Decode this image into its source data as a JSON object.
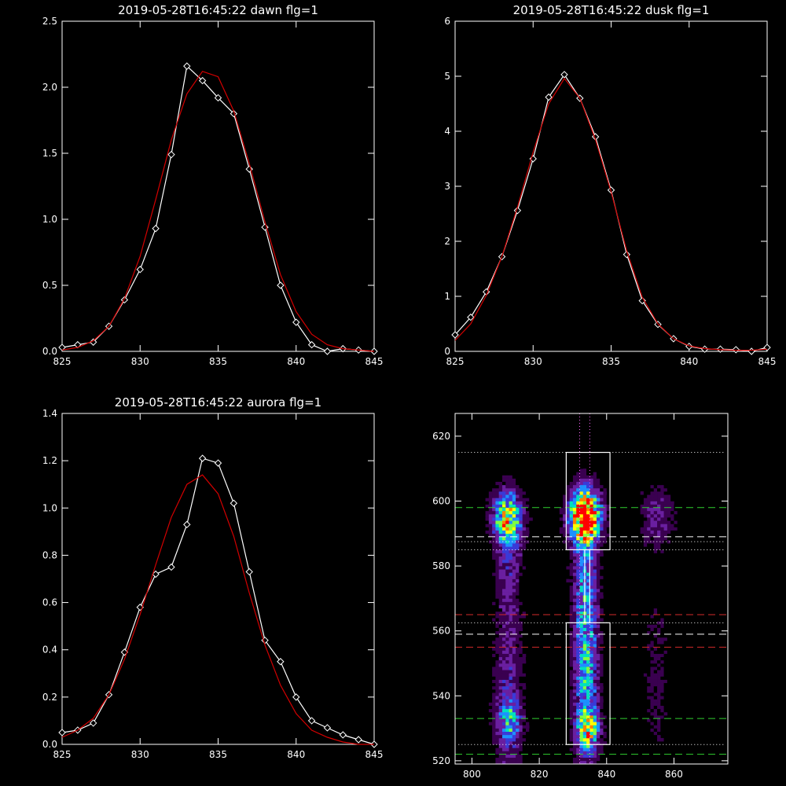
{
  "colors": {
    "background": "#000000",
    "foreground": "#ffffff",
    "fit": "#d40000",
    "marker": "#ffffff",
    "green_dash": "#2fd02f",
    "red_dash": "#d42a2a",
    "white_dash": "#ffffff",
    "magenta_dot": "#ff66ff",
    "white_dot": "#ffffff"
  },
  "chart_data": [
    {
      "type": "line",
      "title": "2019-05-28T16:45:22 dawn flg=1",
      "xlim": [
        825,
        845
      ],
      "ylim": [
        0,
        2.5
      ],
      "xticks": [
        "825",
        "830",
        "835",
        "840",
        "845"
      ],
      "yticks": [
        "0.0",
        "0.5",
        "1.0",
        "1.5",
        "2.0",
        "2.5"
      ],
      "series": [
        {
          "style": "data",
          "x": [
            825,
            826,
            827,
            828,
            829,
            830,
            831,
            832,
            833,
            834,
            835,
            836,
            837,
            838,
            839,
            840,
            841,
            842,
            843,
            844,
            845
          ],
          "y": [
            0.03,
            0.05,
            0.07,
            0.19,
            0.39,
            0.62,
            0.93,
            1.49,
            2.16,
            2.05,
            1.92,
            1.8,
            1.38,
            0.94,
            0.5,
            0.22,
            0.05,
            0.0,
            0.02,
            0.01,
            0.0
          ]
        },
        {
          "style": "fit",
          "x": [
            825,
            826,
            827,
            828,
            829,
            830,
            831,
            832,
            833,
            834,
            835,
            836,
            837,
            838,
            839,
            840,
            841,
            842,
            843,
            844,
            845
          ],
          "y": [
            0.01,
            0.03,
            0.08,
            0.19,
            0.4,
            0.72,
            1.15,
            1.6,
            1.95,
            2.12,
            2.08,
            1.82,
            1.42,
            0.98,
            0.58,
            0.3,
            0.13,
            0.05,
            0.02,
            0.01,
            0.0
          ]
        }
      ]
    },
    {
      "type": "line",
      "title": "2019-05-28T16:45:22 dusk flg=1",
      "xlim": [
        825,
        845
      ],
      "ylim": [
        0,
        6
      ],
      "xticks": [
        "825",
        "830",
        "835",
        "840",
        "845"
      ],
      "yticks": [
        "0",
        "1",
        "2",
        "3",
        "4",
        "5",
        "6"
      ],
      "series": [
        {
          "style": "data",
          "x": [
            825,
            826,
            827,
            828,
            829,
            830,
            831,
            832,
            833,
            834,
            835,
            836,
            837,
            838,
            839,
            840,
            841,
            842,
            843,
            844,
            845
          ],
          "y": [
            0.3,
            0.62,
            1.08,
            1.72,
            2.56,
            3.5,
            4.62,
            5.03,
            4.6,
            3.9,
            2.93,
            1.76,
            0.92,
            0.49,
            0.23,
            0.09,
            0.04,
            0.04,
            0.03,
            0.0,
            0.07
          ]
        },
        {
          "style": "fit",
          "x": [
            825,
            826,
            827,
            828,
            829,
            830,
            831,
            832,
            833,
            834,
            835,
            836,
            837,
            838,
            839,
            840,
            841,
            842,
            843,
            844,
            845
          ],
          "y": [
            0.2,
            0.5,
            1.02,
            1.72,
            2.62,
            3.62,
            4.5,
            4.96,
            4.6,
            3.85,
            2.9,
            1.82,
            0.98,
            0.5,
            0.23,
            0.1,
            0.05,
            0.03,
            0.02,
            0.02,
            0.04
          ]
        }
      ]
    },
    {
      "type": "line",
      "title": "2019-05-28T16:45:22 aurora flg=1",
      "xlim": [
        825,
        845
      ],
      "ylim": [
        0,
        1.4
      ],
      "xticks": [
        "825",
        "830",
        "835",
        "840",
        "845"
      ],
      "yticks": [
        "0.0",
        "0.2",
        "0.4",
        "0.6",
        "0.8",
        "1.0",
        "1.2",
        "1.4"
      ],
      "series": [
        {
          "style": "data",
          "x": [
            825,
            826,
            827,
            828,
            829,
            830,
            831,
            832,
            833,
            834,
            835,
            836,
            837,
            838,
            839,
            840,
            841,
            842,
            843,
            844,
            845
          ],
          "y": [
            0.05,
            0.06,
            0.09,
            0.21,
            0.39,
            0.58,
            0.72,
            0.75,
            0.93,
            1.21,
            1.19,
            1.02,
            0.73,
            0.44,
            0.35,
            0.2,
            0.1,
            0.07,
            0.04,
            0.02,
            0.0
          ]
        },
        {
          "style": "fit",
          "x": [
            825,
            826,
            827,
            828,
            829,
            830,
            831,
            832,
            833,
            834,
            835,
            836,
            837,
            838,
            839,
            840,
            841,
            842,
            843,
            844,
            845
          ],
          "y": [
            0.03,
            0.06,
            0.11,
            0.21,
            0.36,
            0.55,
            0.76,
            0.96,
            1.1,
            1.14,
            1.06,
            0.88,
            0.64,
            0.42,
            0.25,
            0.13,
            0.06,
            0.03,
            0.01,
            0.0,
            0.0
          ]
        }
      ]
    },
    {
      "type": "heatmap",
      "title": "",
      "xlim": [
        795,
        876
      ],
      "ylim": [
        519,
        627
      ],
      "xticks": [
        "800",
        "820",
        "840",
        "860"
      ],
      "yticks": [
        "520",
        "540",
        "560",
        "580",
        "600",
        "620"
      ],
      "colormap": [
        "#000000",
        "#3a0050",
        "#6a1fa0",
        "#3a3ad8",
        "#1e90ff",
        "#00e0c0",
        "#80ff40",
        "#ffff00",
        "#ff8000",
        "#ff0000"
      ],
      "sources": [
        {
          "x": 810.5,
          "y": 595,
          "sx": 3.2,
          "sy": 5.5,
          "amp": 0.62
        },
        {
          "x": 811,
          "y": 582,
          "sx": 2.6,
          "sy": 12,
          "amp": 0.2
        },
        {
          "x": 811,
          "y": 540,
          "sx": 3,
          "sy": 20,
          "amp": 0.24
        },
        {
          "x": 811,
          "y": 532,
          "sx": 2.5,
          "sy": 4,
          "amp": 0.3
        },
        {
          "x": 833.5,
          "y": 595.5,
          "sx": 3.2,
          "sy": 5.5,
          "amp": 1.0
        },
        {
          "x": 833.5,
          "y": 578,
          "sx": 2.4,
          "sy": 16,
          "amp": 0.3
        },
        {
          "x": 834,
          "y": 545,
          "sx": 2.6,
          "sy": 20,
          "amp": 0.42
        },
        {
          "x": 834.5,
          "y": 530,
          "sx": 2.2,
          "sy": 4,
          "amp": 0.5
        },
        {
          "x": 855,
          "y": 595,
          "sx": 3.5,
          "sy": 7,
          "amp": 0.2
        },
        {
          "x": 855,
          "y": 545,
          "sx": 3.2,
          "sy": 20,
          "amp": 0.1
        }
      ],
      "boxes": [
        {
          "x0": 828,
          "x1": 841,
          "y0": 585,
          "y1": 615
        },
        {
          "x0": 828,
          "x1": 841,
          "y0": 525,
          "y1": 562.5
        },
        {
          "x0": 833.5,
          "x1": 835,
          "y0": 562.5,
          "y1": 585
        }
      ],
      "hlines": [
        {
          "y": 598,
          "style": "green-dash"
        },
        {
          "y": 533,
          "style": "green-dash"
        },
        {
          "y": 522,
          "style": "green-dash"
        },
        {
          "y": 565,
          "style": "red-dash"
        },
        {
          "y": 555,
          "style": "red-dash"
        },
        {
          "y": 589,
          "style": "white-dash"
        },
        {
          "y": 559,
          "style": "white-dash"
        },
        {
          "y": 615,
          "style": "white-dot"
        },
        {
          "y": 587.5,
          "style": "white-dot"
        },
        {
          "y": 585,
          "style": "white-dot"
        },
        {
          "y": 562.5,
          "style": "white-dot"
        },
        {
          "y": 525,
          "style": "white-dot"
        }
      ],
      "vlines": [
        {
          "x": 832,
          "style": "magenta-dot"
        },
        {
          "x": 835,
          "style": "magenta-dot"
        }
      ]
    }
  ]
}
